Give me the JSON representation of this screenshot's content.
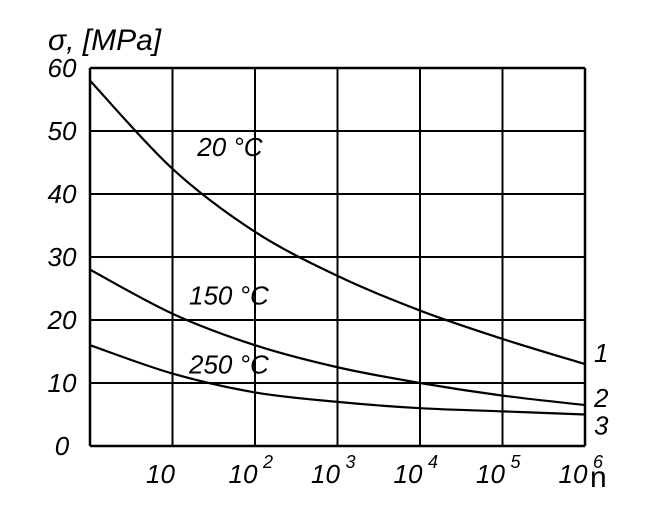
{
  "chart_data": {
    "type": "line",
    "ylabel": "σ, [MPa]",
    "xlabel": "n",
    "x_scale": "log",
    "ylim": [
      0,
      60
    ],
    "yticks": [
      "0",
      "10",
      "20",
      "30",
      "40",
      "50",
      "60"
    ],
    "xticks": [
      {
        "base": "10",
        "exp": ""
      },
      {
        "base": "10",
        "exp": "2"
      },
      {
        "base": "10",
        "exp": "3"
      },
      {
        "base": "10",
        "exp": "4"
      },
      {
        "base": "10",
        "exp": "5"
      },
      {
        "base": "10",
        "exp": "6"
      }
    ],
    "grid": true,
    "series": [
      {
        "name": "20 °C",
        "number": "1",
        "x": [
          1,
          10,
          100,
          1000,
          10000,
          100000,
          1000000
        ],
        "values": [
          58,
          44,
          34,
          27,
          21.5,
          17,
          13
        ]
      },
      {
        "name": "150 °C",
        "number": "2",
        "x": [
          1,
          10,
          100,
          1000,
          10000,
          100000,
          1000000
        ],
        "values": [
          28,
          21,
          16,
          12.5,
          10,
          8,
          6.5
        ]
      },
      {
        "name": "250 °C",
        "number": "3",
        "x": [
          1,
          10,
          100,
          1000,
          10000,
          100000,
          1000000
        ],
        "values": [
          16,
          11.5,
          8.5,
          7,
          6,
          5.5,
          5
        ]
      }
    ]
  }
}
